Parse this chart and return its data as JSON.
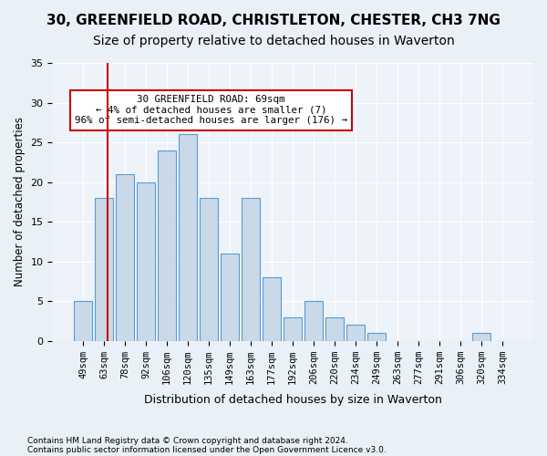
{
  "title1": "30, GREENFIELD ROAD, CHRISTLETON, CHESTER, CH3 7NG",
  "title2": "Size of property relative to detached houses in Waverton",
  "xlabel": "Distribution of detached houses by size in Waverton",
  "ylabel": "Number of detached properties",
  "categories": [
    "49sqm",
    "63sqm",
    "78sqm",
    "92sqm",
    "106sqm",
    "120sqm",
    "135sqm",
    "149sqm",
    "163sqm",
    "177sqm",
    "192sqm",
    "206sqm",
    "220sqm",
    "234sqm",
    "249sqm",
    "263sqm",
    "277sqm",
    "291sqm",
    "306sqm",
    "320sqm",
    "334sqm"
  ],
  "values": [
    5,
    18,
    21,
    20,
    24,
    26,
    18,
    11,
    18,
    8,
    3,
    5,
    3,
    2,
    1,
    0,
    0,
    0,
    0,
    1,
    0
  ],
  "bar_color": "#c9d9e8",
  "bar_edge_color": "#5b9bd5",
  "red_line_x": 0.575,
  "annotation_text": "30 GREENFIELD ROAD: 69sqm\n← 4% of detached houses are smaller (7)\n96% of semi-detached houses are larger (176) →",
  "annotation_box_color": "#ffffff",
  "annotation_box_edge_color": "#cc0000",
  "footer1": "Contains HM Land Registry data © Crown copyright and database right 2024.",
  "footer2": "Contains public sector information licensed under the Open Government Licence v3.0.",
  "ylim": [
    0,
    35
  ],
  "yticks": [
    0,
    5,
    10,
    15,
    20,
    25,
    30,
    35
  ],
  "bg_color": "#eaf0f8",
  "plot_bg_color": "#eef3fa",
  "grid_color": "#ffffff",
  "title_fontsize": 11,
  "subtitle_fontsize": 10
}
